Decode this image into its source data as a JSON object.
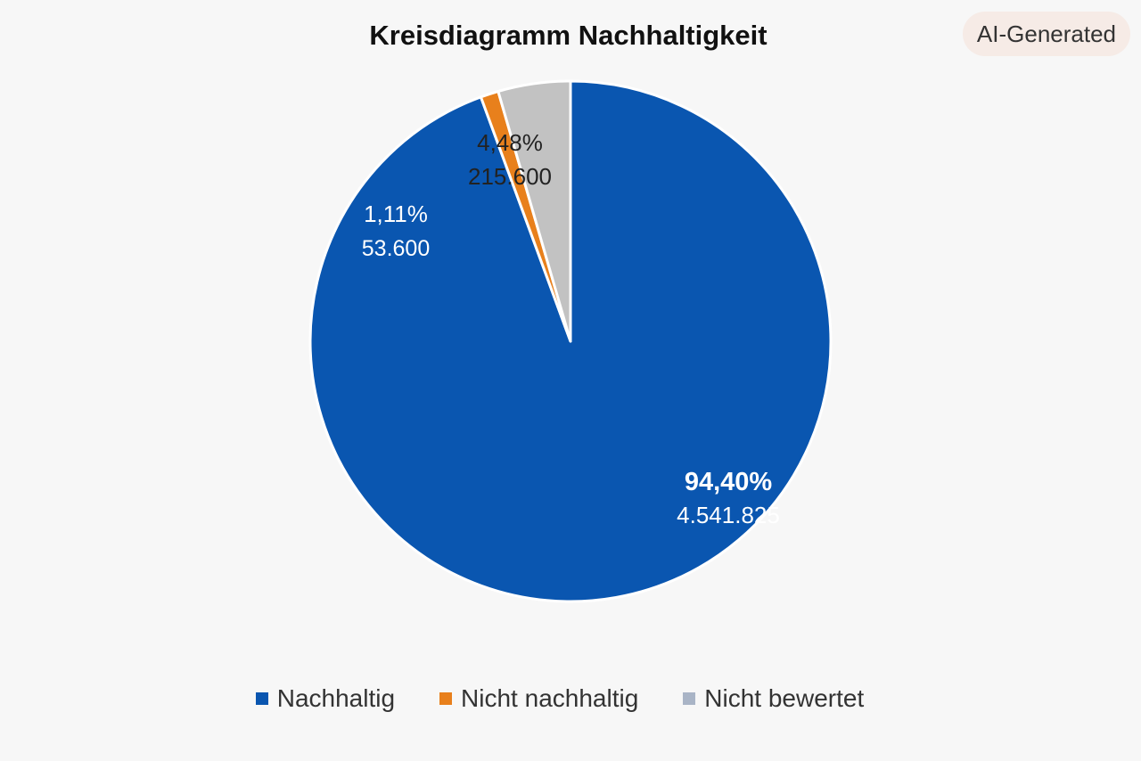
{
  "badge": "AI-Generated",
  "colors": {
    "nachhaltig": "#0a56b0",
    "nicht_nachhaltig": "#e8801c",
    "nicht_bewertet": "#c2c2c2",
    "legend_nicht_bewertet": "#a9b4c6"
  },
  "chart_data": {
    "type": "pie",
    "title": "Kreisdiagramm Nachhaltigkeit",
    "start_angle_deg": 0,
    "direction": "clockwise",
    "legend_position": "bottom",
    "slices": [
      {
        "label": "Nachhaltig",
        "value": 4541825,
        "value_label": "4.541.825",
        "percent": 94.4,
        "percent_label": "94,40%",
        "color": "#0a56b0",
        "text_color": "#ffffff"
      },
      {
        "label": "Nicht nachhaltig",
        "value": 53600,
        "value_label": "53.600",
        "percent": 1.11,
        "percent_label": "1,11%",
        "color": "#e8801c",
        "text_color": "#ffffff"
      },
      {
        "label": "Nicht bewertet",
        "value": 215600,
        "value_label": "215.600",
        "percent": 4.48,
        "percent_label": "4,48%",
        "color": "#c2c2c2",
        "text_color": "#222222"
      }
    ]
  }
}
